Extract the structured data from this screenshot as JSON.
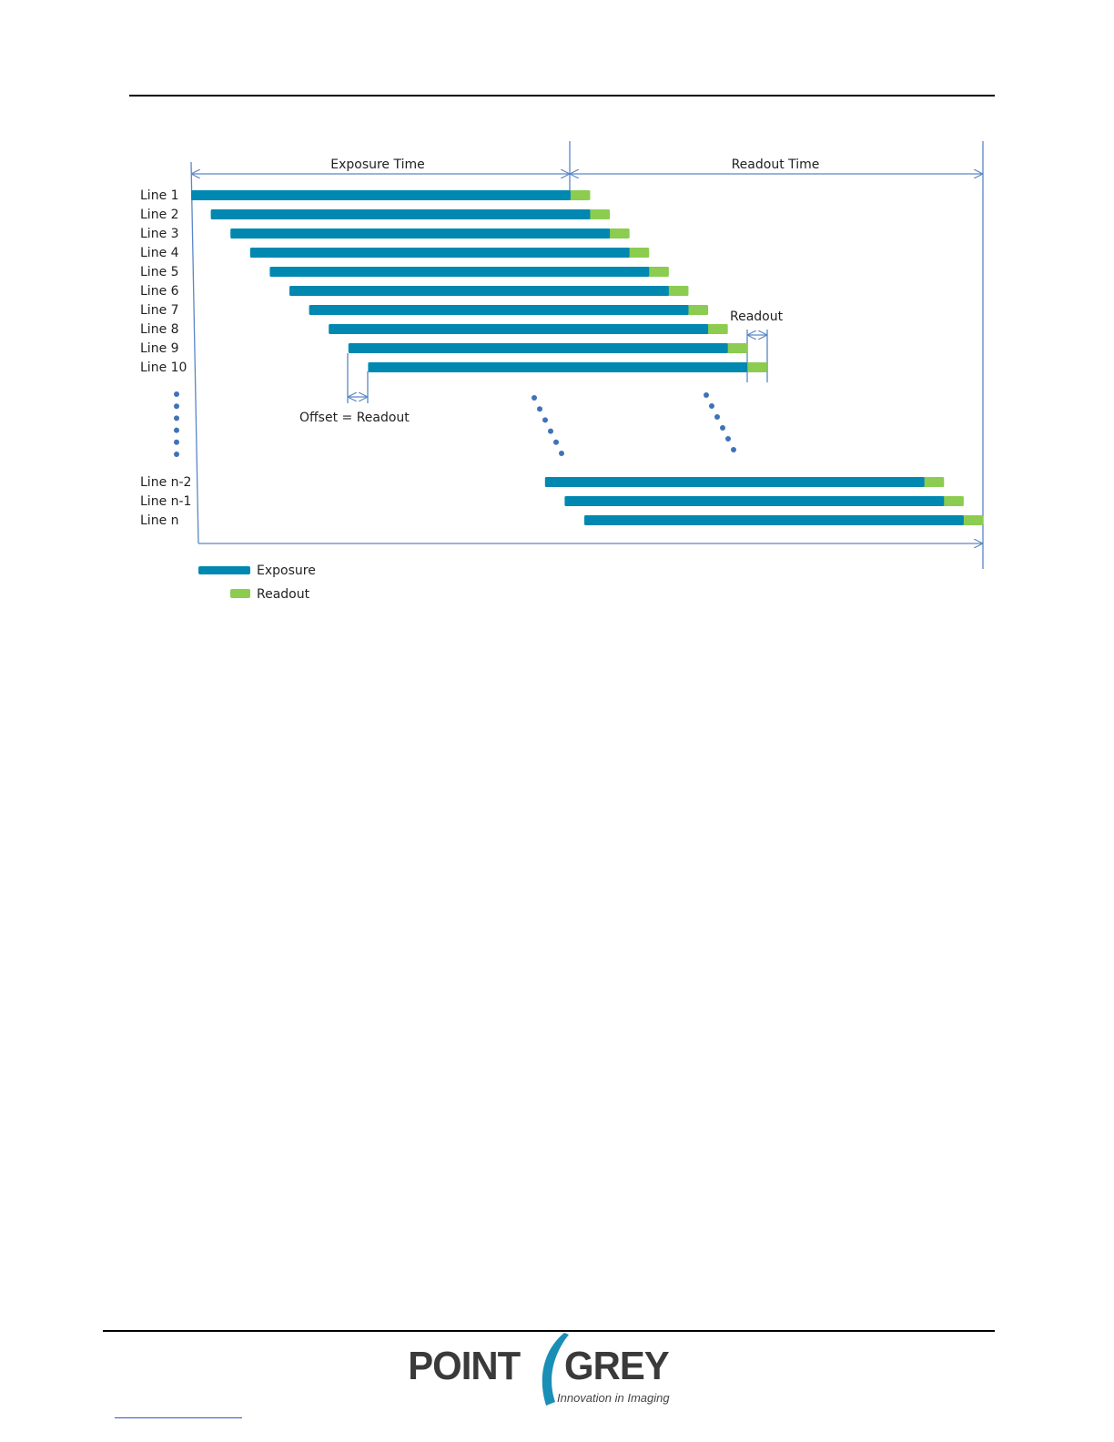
{
  "diagram": {
    "header_labels": {
      "exposure_time": "Exposure Time",
      "readout_time": "Readout Time"
    },
    "annotations": {
      "readout": "Readout",
      "offset": "Offset = Readout"
    },
    "legend": {
      "exposure": "Exposure",
      "readout": "Readout"
    },
    "colors": {
      "exposure": "#0088b0",
      "readout": "#8ccc50",
      "lines": "#5b86c5",
      "dots": "#3f72b8"
    }
  },
  "chart_data": {
    "type": "bar",
    "subtype": "rolling-shutter-timing",
    "units": "readout periods",
    "exposure_duration": 19.3,
    "readout_duration": 1,
    "lines": [
      {
        "label": "Line 1",
        "start": 0
      },
      {
        "label": "Line 2",
        "start": 1
      },
      {
        "label": "Line 3",
        "start": 2
      },
      {
        "label": "Line 4",
        "start": 3
      },
      {
        "label": "Line 5",
        "start": 4
      },
      {
        "label": "Line 6",
        "start": 5
      },
      {
        "label": "Line 7",
        "start": 6
      },
      {
        "label": "Line 8",
        "start": 7
      },
      {
        "label": "Line 9",
        "start": 8
      },
      {
        "label": "Line 10",
        "start": 9
      },
      {
        "label": "Line n-2",
        "start": 18
      },
      {
        "label": "Line n-1",
        "start": 19
      },
      {
        "label": "Line n",
        "start": 20
      }
    ]
  },
  "footer": {
    "logo_text": "POINT GREY",
    "logo_tagline": "Innovation in Imaging"
  }
}
